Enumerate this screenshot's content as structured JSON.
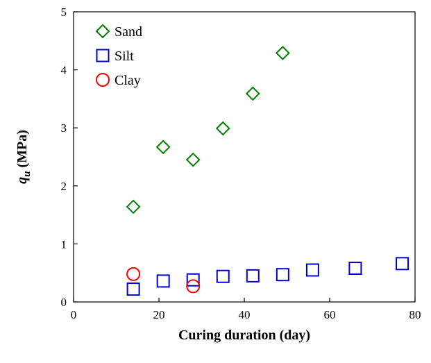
{
  "chart_data": {
    "type": "scatter",
    "xlabel": "Curing duration (day)",
    "ylabel": {
      "main": "q",
      "sub": "u",
      "unit": "(MPa)"
    },
    "xlim": [
      0,
      80
    ],
    "ylim": [
      0,
      5
    ],
    "xticks": [
      0,
      20,
      40,
      60,
      80
    ],
    "yticks": [
      0,
      1,
      2,
      3,
      4,
      5
    ],
    "grid": false,
    "legend_position": "top-left",
    "series": [
      {
        "name": "Sand",
        "marker": "diamond",
        "color": "#008000",
        "points": [
          [
            14,
            1.64
          ],
          [
            21,
            2.67
          ],
          [
            28,
            2.45
          ],
          [
            35,
            2.99
          ],
          [
            42,
            3.59
          ],
          [
            49,
            4.29
          ]
        ]
      },
      {
        "name": "Silt",
        "marker": "square",
        "color": "#0000cc",
        "points": [
          [
            14,
            0.22
          ],
          [
            21,
            0.36
          ],
          [
            28,
            0.38
          ],
          [
            35,
            0.44
          ],
          [
            42,
            0.45
          ],
          [
            49,
            0.47
          ],
          [
            56,
            0.55
          ],
          [
            66,
            0.58
          ],
          [
            77,
            0.66
          ]
        ]
      },
      {
        "name": "Clay",
        "marker": "circle",
        "color": "#ff0000",
        "points": [
          [
            14,
            0.48
          ],
          [
            28,
            0.27
          ]
        ]
      }
    ]
  }
}
